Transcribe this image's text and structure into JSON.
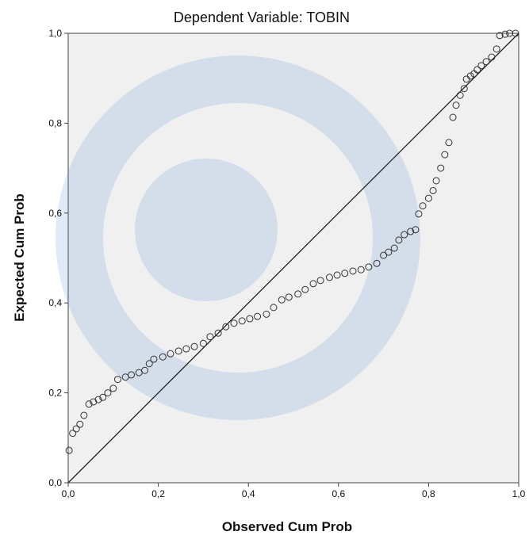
{
  "chart_data": {
    "type": "scatter",
    "title": "Dependent Variable: TOBIN",
    "x_label": "Observed Cum Prob",
    "y_label": "Expected Cum Prob",
    "xlim": [
      0,
      1
    ],
    "ylim": [
      0,
      1
    ],
    "xticks": [
      {
        "value": 0,
        "label": "0,0"
      },
      {
        "value": 0.2,
        "label": "0,2"
      },
      {
        "value": 0.4,
        "label": "0,4"
      },
      {
        "value": 0.6,
        "label": "0,6"
      },
      {
        "value": 0.8,
        "label": "0,8"
      },
      {
        "value": 1,
        "label": "1,0"
      }
    ],
    "yticks": [
      {
        "value": 0,
        "label": "0,0"
      },
      {
        "value": 0.2,
        "label": "0,2"
      },
      {
        "value": 0.4,
        "label": "0,4"
      },
      {
        "value": 0.6,
        "label": "0,6"
      },
      {
        "value": 0.8,
        "label": "0,8"
      },
      {
        "value": 1,
        "label": "1,0"
      }
    ],
    "color": "#333333",
    "reference_line": true,
    "x": [
      0.002,
      0.01,
      0.018,
      0.026,
      0.035,
      0.046,
      0.056,
      0.067,
      0.077,
      0.088,
      0.1,
      0.11,
      0.127,
      0.14,
      0.157,
      0.17,
      0.18,
      0.19,
      0.21,
      0.227,
      0.245,
      0.262,
      0.28,
      0.3,
      0.315,
      0.333,
      0.35,
      0.368,
      0.386,
      0.403,
      0.42,
      0.44,
      0.456,
      0.474,
      0.49,
      0.51,
      0.526,
      0.544,
      0.56,
      0.58,
      0.597,
      0.614,
      0.632,
      0.65,
      0.667,
      0.685,
      0.7,
      0.711,
      0.724,
      0.734,
      0.746,
      0.76,
      0.771,
      0.778,
      0.787,
      0.8,
      0.81,
      0.817,
      0.827,
      0.836,
      0.845,
      0.854,
      0.861,
      0.87,
      0.879,
      0.884,
      0.893,
      0.901,
      0.908,
      0.917,
      0.928,
      0.94,
      0.951,
      0.958,
      0.97,
      0.98,
      0.993
    ],
    "values": [
      0.072,
      0.11,
      0.12,
      0.13,
      0.15,
      0.175,
      0.18,
      0.185,
      0.19,
      0.2,
      0.21,
      0.23,
      0.235,
      0.24,
      0.245,
      0.25,
      0.265,
      0.275,
      0.28,
      0.287,
      0.293,
      0.298,
      0.303,
      0.31,
      0.325,
      0.333,
      0.347,
      0.355,
      0.36,
      0.365,
      0.37,
      0.375,
      0.39,
      0.407,
      0.413,
      0.42,
      0.43,
      0.443,
      0.45,
      0.457,
      0.462,
      0.466,
      0.471,
      0.474,
      0.48,
      0.488,
      0.506,
      0.513,
      0.522,
      0.54,
      0.552,
      0.559,
      0.563,
      0.598,
      0.616,
      0.633,
      0.65,
      0.672,
      0.7,
      0.73,
      0.757,
      0.813,
      0.84,
      0.862,
      0.877,
      0.898,
      0.905,
      0.91,
      0.919,
      0.928,
      0.937,
      0.947,
      0.965,
      0.995,
      0.998,
      1.0,
      1.0
    ]
  }
}
